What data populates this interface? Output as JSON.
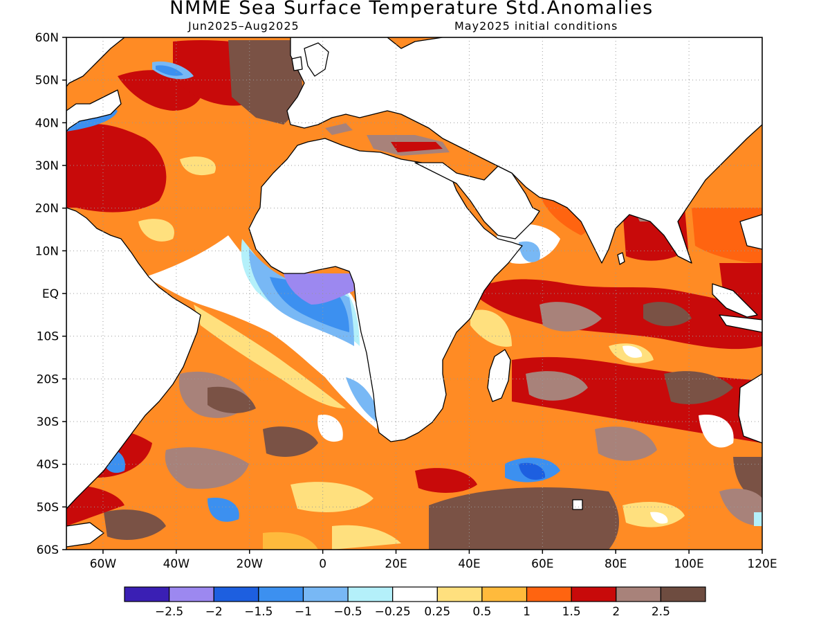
{
  "header": {
    "title": "NMME Sea Surface Temperature Std.Anomalies",
    "period": "Jun2025–Aug2025",
    "init": "May2025 initial conditions"
  },
  "map": {
    "lon_range": [
      -70,
      120
    ],
    "lat_range": [
      -60,
      60
    ],
    "lat_ticks": [
      {
        "v": 60,
        "label": "60N"
      },
      {
        "v": 50,
        "label": "50N"
      },
      {
        "v": 40,
        "label": "40N"
      },
      {
        "v": 30,
        "label": "30N"
      },
      {
        "v": 20,
        "label": "20N"
      },
      {
        "v": 10,
        "label": "10N"
      },
      {
        "v": 0,
        "label": "EQ"
      },
      {
        "v": -10,
        "label": "10S"
      },
      {
        "v": -20,
        "label": "20S"
      },
      {
        "v": -30,
        "label": "30S"
      },
      {
        "v": -40,
        "label": "40S"
      },
      {
        "v": -50,
        "label": "50S"
      },
      {
        "v": -60,
        "label": "60S"
      }
    ],
    "lon_ticks": [
      {
        "v": -60,
        "label": "60W"
      },
      {
        "v": -40,
        "label": "40W"
      },
      {
        "v": -20,
        "label": "20W"
      },
      {
        "v": 0,
        "label": "0"
      },
      {
        "v": 20,
        "label": "20E"
      },
      {
        "v": 40,
        "label": "40E"
      },
      {
        "v": 60,
        "label": "60E"
      },
      {
        "v": 80,
        "label": "80E"
      },
      {
        "v": 100,
        "label": "100E"
      },
      {
        "v": 120,
        "label": "120E"
      }
    ]
  },
  "colorbar": {
    "colors": [
      "#3a1fb4",
      "#9c88f0",
      "#1d5fe0",
      "#3c90f0",
      "#78b8f5",
      "#b4f0fa",
      "#ffffff",
      "#ffe07e",
      "#ffba3c",
      "#ff6410",
      "#c80a0a",
      "#a8827a",
      "#6e4c40"
    ],
    "labels": [
      "-2.5",
      "-2",
      "-1.5",
      "-1",
      "-0.5",
      "-0.25",
      "0.25",
      "0.5",
      "1",
      "1.5",
      "2",
      "2.5"
    ]
  },
  "legend_label_chars": {
    "minus": "−"
  }
}
